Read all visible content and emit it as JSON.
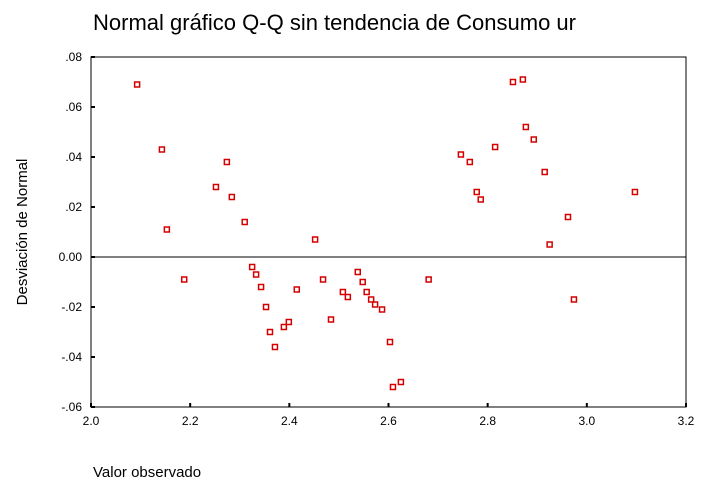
{
  "chart_data": {
    "type": "scatter",
    "title": "Normal gráfico Q-Q sin tendencia de Consumo ur",
    "x_label": "Valor observado",
    "y_label": "Desviación de Normal",
    "color": "#d40000",
    "x": [
      2.093,
      2.143,
      2.153,
      2.188,
      2.252,
      2.274,
      2.284,
      2.31,
      2.325,
      2.333,
      2.343,
      2.353,
      2.361,
      2.371,
      2.389,
      2.399,
      2.415,
      2.452,
      2.468,
      2.484,
      2.508,
      2.518,
      2.538,
      2.548,
      2.556,
      2.565,
      2.573,
      2.587,
      2.603,
      2.609,
      2.625,
      2.681,
      2.746,
      2.764,
      2.778,
      2.786,
      2.815,
      2.851,
      2.871,
      2.877,
      2.893,
      2.915,
      2.962,
      2.925,
      2.974,
      3.097
    ],
    "values": [
      0.069,
      0.043,
      0.011,
      -0.009,
      0.028,
      0.038,
      0.024,
      0.014,
      -0.004,
      -0.007,
      -0.012,
      -0.02,
      -0.03,
      -0.036,
      -0.028,
      -0.026,
      -0.013,
      0.007,
      -0.009,
      -0.025,
      -0.014,
      -0.016,
      -0.006,
      -0.01,
      -0.014,
      -0.017,
      -0.019,
      -0.021,
      -0.034,
      -0.052,
      -0.05,
      -0.009,
      0.041,
      0.038,
      0.026,
      0.023,
      0.044,
      0.07,
      0.071,
      0.052,
      0.047,
      0.034,
      0.016,
      0.005,
      -0.017,
      0.026
    ],
    "xlim": [
      2.0,
      3.2
    ],
    "xticks": [
      {
        "value": 2.0,
        "label": "2.0"
      },
      {
        "value": 2.2,
        "label": "2.2"
      },
      {
        "value": 2.4,
        "label": "2.4"
      },
      {
        "value": 2.6,
        "label": "2.6"
      },
      {
        "value": 2.8,
        "label": "2.8"
      },
      {
        "value": 3.0,
        "label": "3.0"
      },
      {
        "value": 3.2,
        "label": "3.2"
      }
    ],
    "ylim": [
      -0.06,
      0.08
    ],
    "yticks": [
      {
        "value": -0.06,
        "label": "-.06"
      },
      {
        "value": -0.04,
        "label": "-.04"
      },
      {
        "value": -0.02,
        "label": "-.02"
      },
      {
        "value": 0,
        "label": "0.00"
      },
      {
        "value": 0.02,
        "label": ".02"
      },
      {
        "value": 0.04,
        "label": ".04"
      },
      {
        "value": 0.06,
        "label": ".06"
      },
      {
        "value": 0.08,
        "label": ".08"
      }
    ]
  }
}
